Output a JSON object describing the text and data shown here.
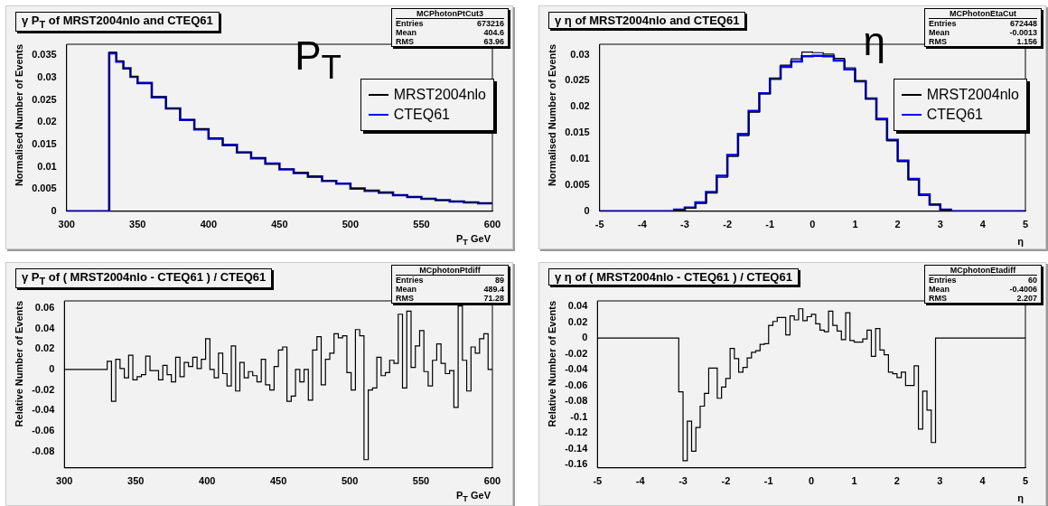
{
  "chart_data": [
    {
      "type": "step",
      "title": "γ P$_{T}$ of MRST2004nlo and CTEQ61",
      "xlabel": "P$_{T}$ GeV",
      "ylabel": "Normalised Number of Events",
      "xlim": [
        300,
        600
      ],
      "xticks": [
        300,
        350,
        400,
        450,
        500,
        550,
        600
      ],
      "ylim": [
        0,
        0.0375
      ],
      "yticks": [
        0,
        0.005,
        0.01,
        0.015,
        0.02,
        0.025,
        0.03,
        0.035
      ],
      "legend": "top right",
      "annotations": [
        "MCPhotonPtCut3",
        "Entries",
        "673216",
        "Mean",
        "404.6",
        "RMS",
        "63.96",
        "P$_{T}$"
      ],
      "series": [
        {
          "name": "MRST2004nlo",
          "color": "#000000",
          "x": [
            300,
            330,
            335,
            340,
            345,
            350,
            360,
            370,
            380,
            390,
            400,
            410,
            420,
            430,
            440,
            450,
            460,
            470,
            480,
            490,
            500,
            510,
            520,
            530,
            540,
            550,
            560,
            570,
            580,
            590,
            600
          ],
          "values": [
            0,
            0.0357,
            0.0338,
            0.032,
            0.0303,
            0.0287,
            0.0257,
            0.023,
            0.0206,
            0.0185,
            0.0165,
            0.0148,
            0.0133,
            0.012,
            0.0106,
            0.0095,
            0.0086,
            0.0077,
            0.0069,
            0.0062,
            0.0051,
            0.0047,
            0.0042,
            0.0036,
            0.0032,
            0.0028,
            0.0025,
            0.0022,
            0.002,
            0.0018,
            0.0018
          ]
        },
        {
          "name": "CTEQ61",
          "color": "#0000ff",
          "x": [
            300,
            330,
            335,
            340,
            345,
            350,
            360,
            370,
            380,
            390,
            400,
            410,
            420,
            430,
            440,
            450,
            460,
            470,
            480,
            490,
            500,
            510,
            520,
            530,
            540,
            550,
            560,
            570,
            580,
            590,
            600
          ],
          "values": [
            0,
            0.0355,
            0.0336,
            0.0321,
            0.0302,
            0.0288,
            0.0256,
            0.0231,
            0.0205,
            0.0184,
            0.0163,
            0.0149,
            0.0132,
            0.0119,
            0.0107,
            0.0094,
            0.0086,
            0.0078,
            0.0068,
            0.0062,
            0.0051,
            0.0046,
            0.0042,
            0.0036,
            0.0032,
            0.0028,
            0.0025,
            0.0022,
            0.002,
            0.0018,
            0.0018
          ]
        }
      ]
    },
    {
      "type": "step",
      "title": "γ η of MRST2004nlo and CTEQ61",
      "xlabel": "η",
      "ylabel": "Normalised Number of Events",
      "xlim": [
        -5,
        5
      ],
      "xticks": [
        -5,
        -4,
        -3,
        -2,
        -1,
        0,
        1,
        2,
        3,
        4,
        5
      ],
      "ylim": [
        0,
        0.032
      ],
      "yticks": [
        0,
        0.005,
        0.01,
        0.015,
        0.02,
        0.025,
        0.03
      ],
      "legend": "top right",
      "annotations": [
        "MCPhotonEtaCut",
        "Entries",
        "672448",
        "Mean",
        "-0.0013",
        "RMS",
        "1.156",
        "η"
      ],
      "series": [
        {
          "name": "MRST2004nlo",
          "color": "#000000",
          "x": [
            -5,
            -3.25,
            -3,
            -2.75,
            -2.5,
            -2.25,
            -2,
            -1.75,
            -1.5,
            -1.25,
            -1,
            -0.75,
            -0.5,
            -0.25,
            0,
            0.25,
            0.5,
            0.75,
            1,
            1.25,
            1.5,
            1.75,
            2,
            2.25,
            2.5,
            2.75,
            3,
            3.25,
            5
          ],
          "values": [
            0,
            0.0002,
            0.0006,
            0.0015,
            0.0035,
            0.0065,
            0.0105,
            0.0145,
            0.019,
            0.0225,
            0.0255,
            0.028,
            0.0292,
            0.0305,
            0.0304,
            0.0301,
            0.0293,
            0.0275,
            0.025,
            0.0215,
            0.0175,
            0.0135,
            0.0095,
            0.006,
            0.003,
            0.0012,
            0.0003,
            0,
            0
          ]
        },
        {
          "name": "CTEQ61",
          "color": "#0000ff",
          "x": [
            -5,
            -3.25,
            -3,
            -2.75,
            -2.5,
            -2.25,
            -2,
            -1.75,
            -1.5,
            -1.25,
            -1,
            -0.75,
            -0.5,
            -0.25,
            0,
            0.25,
            0.5,
            0.75,
            1,
            1.25,
            1.5,
            1.75,
            2,
            2.25,
            2.5,
            2.75,
            3,
            3.25,
            5
          ],
          "values": [
            0,
            0.0003,
            0.0007,
            0.0017,
            0.0037,
            0.0068,
            0.0108,
            0.0148,
            0.0192,
            0.0226,
            0.0254,
            0.0277,
            0.0287,
            0.0297,
            0.0298,
            0.0297,
            0.0289,
            0.0272,
            0.0249,
            0.0216,
            0.0177,
            0.0137,
            0.0097,
            0.0062,
            0.0032,
            0.0013,
            0.0003,
            0,
            0
          ]
        }
      ]
    },
    {
      "type": "step",
      "title": "γ P$_{T}$ of ( MRST2004nlo - CTEQ61 ) / CTEQ61",
      "xlabel": "P$_{T}$ GeV",
      "ylabel": "Relative Number of Events",
      "xlim": [
        300,
        600
      ],
      "xticks": [
        300,
        350,
        400,
        450,
        500,
        550,
        600
      ],
      "ylim": [
        -0.096,
        0.067
      ],
      "yticks": [
        -0.08,
        -0.06,
        -0.04,
        -0.02,
        0,
        0.02,
        0.04,
        0.06
      ],
      "annotations": [
        "MCphotonPtdiff",
        "Entries",
        "89",
        "Mean",
        "489.4",
        "RMS",
        "71.28"
      ],
      "series": [
        {
          "color": "#000000",
          "x": [
            300,
            330,
            333,
            336,
            339,
            342,
            345,
            348,
            351,
            354,
            357,
            360,
            363,
            366,
            369,
            372,
            375,
            378,
            381,
            384,
            387,
            390,
            393,
            396,
            399,
            402,
            405,
            408,
            411,
            414,
            417,
            420,
            423,
            426,
            429,
            432,
            435,
            438,
            441,
            444,
            447,
            450,
            453,
            456,
            459,
            462,
            465,
            468,
            471,
            474,
            477,
            480,
            483,
            486,
            489,
            492,
            495,
            498,
            501,
            504,
            507,
            510,
            513,
            516,
            519,
            522,
            525,
            528,
            531,
            534,
            537,
            540,
            543,
            546,
            549,
            552,
            555,
            558,
            561,
            564,
            567,
            570,
            573,
            576,
            579,
            582,
            585,
            588,
            591,
            594,
            597,
            600
          ],
          "values": [
            0,
            0.008,
            -0.031,
            0.01,
            0.001,
            -0.008,
            0.014,
            -0.01,
            -0.007,
            -0.005,
            0.013,
            -0.001,
            -0.001,
            -0.01,
            0.004,
            -0.005,
            -0.012,
            0.012,
            -0.007,
            0.007,
            0.003,
            0.012,
            0.001,
            0.01,
            0.03,
            0,
            -0.008,
            0.016,
            -0.004,
            -0.016,
            0.023,
            -0.021,
            0.007,
            -0.008,
            -0.002,
            -0.006,
            -0.012,
            0.01,
            -0.015,
            -0.02,
            0.003,
            0.019,
            0.022,
            -0.031,
            -0.026,
            0,
            -0.012,
            0,
            -0.03,
            0.019,
            0.032,
            -0.015,
            0.01,
            0.016,
            0.035,
            0.031,
            0.033,
            -0.003,
            -0.02,
            0.039,
            0.033,
            -0.088,
            -0.02,
            -0.018,
            0.012,
            -0.006,
            -0.003,
            0.009,
            0.006,
            0.054,
            -0.018,
            0.057,
            0.002,
            0.023,
            0.038,
            -0.002,
            -0.016,
            0.009,
            0.025,
            0.006,
            -0.004,
            -0.001,
            -0.037,
            0.062,
            0.009,
            -0.021,
            0.022,
            0.016,
            0.03,
            0.035,
            0,
            0
          ]
        }
      ]
    },
    {
      "type": "step",
      "title": "γ η of ( MRST2004nlo - CTEQ61 ) / CTEQ61",
      "xlabel": "η",
      "ylabel": "Relative Number of Events",
      "xlim": [
        -5,
        5
      ],
      "xticks": [
        -5,
        -4,
        -3,
        -2,
        -1,
        0,
        1,
        2,
        3,
        4,
        5
      ],
      "ylim": [
        -0.164,
        0.047
      ],
      "yticks": [
        -0.16,
        -0.14,
        -0.12,
        -0.1,
        -0.08,
        -0.06,
        -0.04,
        -0.02,
        0,
        0.02,
        0.04
      ],
      "annotations": [
        "MCphotonEtadiff",
        "Entries",
        "60",
        "Mean",
        "-0.4006",
        "RMS",
        "2.207"
      ],
      "series": [
        {
          "color": "#000000",
          "x": [
            -5,
            -3.1,
            -3,
            -2.9,
            -2.8,
            -2.7,
            -2.6,
            -2.5,
            -2.4,
            -2.3,
            -2.2,
            -2.1,
            -2,
            -1.9,
            -1.8,
            -1.7,
            -1.6,
            -1.5,
            -1.4,
            -1.3,
            -1.2,
            -1.1,
            -1,
            -0.9,
            -0.8,
            -0.7,
            -0.6,
            -0.5,
            -0.4,
            -0.3,
            -0.2,
            -0.1,
            0,
            0.1,
            0.2,
            0.3,
            0.4,
            0.5,
            0.6,
            0.7,
            0.8,
            0.9,
            1,
            1.1,
            1.2,
            1.3,
            1.4,
            1.5,
            1.6,
            1.7,
            1.8,
            1.9,
            2,
            2.1,
            2.2,
            2.3,
            2.4,
            2.5,
            2.6,
            2.7,
            2.8,
            2.9,
            5
          ],
          "values": [
            0,
            -0.068,
            -0.155,
            -0.105,
            -0.143,
            -0.113,
            -0.086,
            -0.07,
            -0.038,
            -0.038,
            -0.076,
            -0.062,
            -0.051,
            -0.013,
            -0.026,
            -0.043,
            -0.037,
            -0.025,
            -0.018,
            -0.016,
            -0.008,
            -0.007,
            0.016,
            0.021,
            0.026,
            0.026,
            0.004,
            0.028,
            0.023,
            0.037,
            0.022,
            0.027,
            0.03,
            0.018,
            0.01,
            0.008,
            0.034,
            0.016,
            0.009,
            -0.002,
            0.032,
            -0.003,
            -0.005,
            -0.005,
            -0.001,
            0.01,
            -0.023,
            0.012,
            -0.015,
            -0.021,
            -0.043,
            -0.045,
            -0.05,
            -0.043,
            -0.06,
            -0.06,
            -0.035,
            -0.115,
            -0.067,
            -0.091,
            -0.132,
            0,
            0
          ]
        }
      ]
    }
  ]
}
